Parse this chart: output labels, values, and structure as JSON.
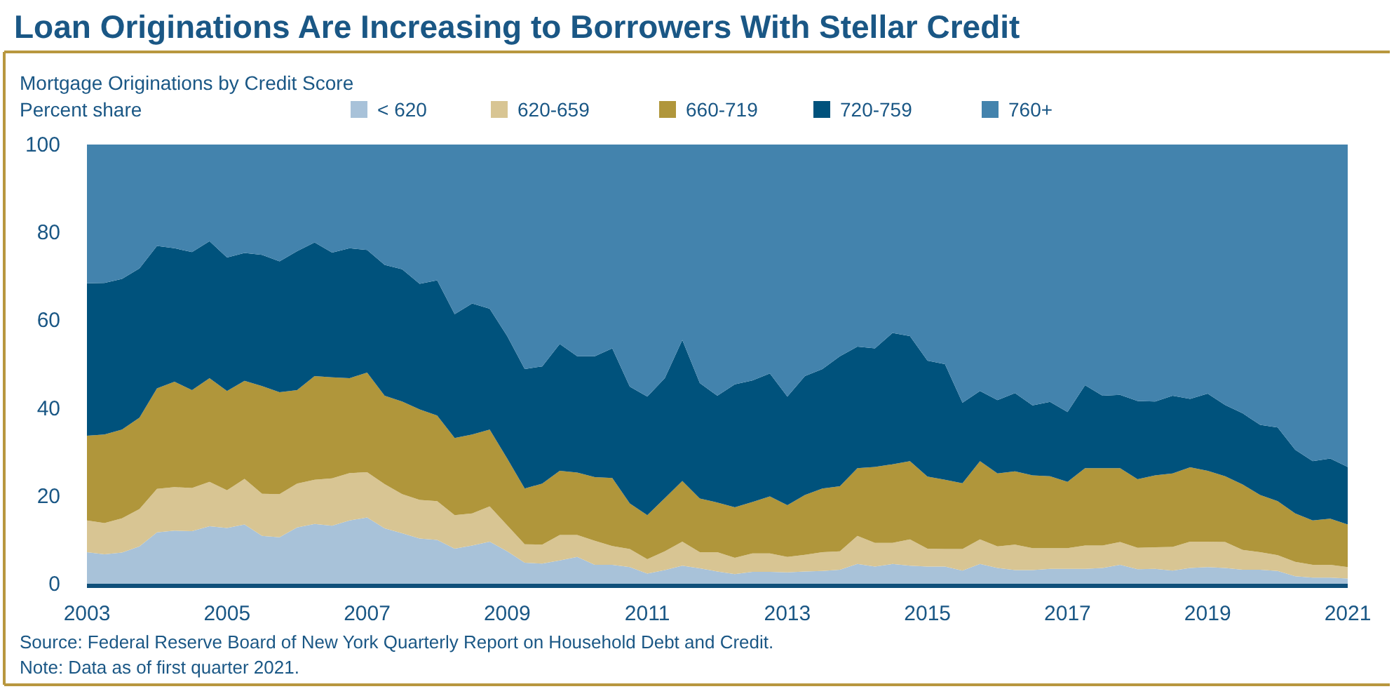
{
  "chart_data": {
    "type": "area",
    "stacked": true,
    "title": "Loan Originations Are Increasing to Borrowers With Stellar Credit",
    "subtitle": "Mortgage Originations by Credit Score",
    "ylabel": "Percent share",
    "legend": "top",
    "grid": false,
    "x": [
      2003,
      2003.25,
      2003.5,
      2003.75,
      2004,
      2004.25,
      2004.5,
      2004.75,
      2005,
      2005.25,
      2005.5,
      2005.75,
      2006,
      2006.25,
      2006.5,
      2006.75,
      2007,
      2007.25,
      2007.5,
      2007.75,
      2008,
      2008.25,
      2008.5,
      2008.75,
      2009,
      2009.25,
      2009.5,
      2009.75,
      2010,
      2010.25,
      2010.5,
      2010.75,
      2011,
      2011.25,
      2011.5,
      2011.75,
      2012,
      2012.25,
      2012.5,
      2012.75,
      2013,
      2013.25,
      2013.5,
      2013.75,
      2014,
      2014.25,
      2014.5,
      2014.75,
      2015,
      2015.25,
      2015.5,
      2015.75,
      2016,
      2016.25,
      2016.5,
      2016.75,
      2017,
      2017.25,
      2017.5,
      2017.75,
      2018,
      2018.25,
      2018.5,
      2018.75,
      2019,
      2019.25,
      2019.5,
      2019.75,
      2020,
      2020.25,
      2020.5,
      2020.75,
      2021
    ],
    "xlim": [
      2003,
      2021
    ],
    "xticks": [
      2003,
      2005,
      2007,
      2009,
      2011,
      2013,
      2015,
      2017,
      2019,
      2021
    ],
    "ylim": [
      0,
      100
    ],
    "yticks": [
      0,
      20,
      40,
      60,
      80,
      100
    ],
    "series": [
      {
        "name": "< 620",
        "color": "#a8c2d9",
        "values": [
          7.2,
          6.7,
          7.1,
          8.5,
          11.7,
          12.1,
          12.0,
          13.1,
          12.7,
          13.5,
          10.9,
          10.6,
          12.8,
          13.6,
          13.2,
          14.4,
          15.1,
          12.6,
          11.5,
          10.3,
          10.0,
          8.0,
          8.7,
          9.6,
          7.4,
          4.8,
          4.6,
          5.3,
          6.1,
          4.3,
          4.3,
          3.8,
          2.3,
          3.1,
          4.1,
          3.5,
          2.8,
          2.2,
          2.7,
          2.7,
          2.6,
          2.8,
          2.9,
          3.2,
          4.5,
          3.9,
          4.5,
          4.1,
          3.9,
          3.9,
          3.0,
          4.5,
          3.6,
          3.1,
          3.1,
          3.4,
          3.4,
          3.4,
          3.6,
          4.3,
          3.3,
          3.4,
          3.0,
          3.6,
          3.8,
          3.6,
          3.2,
          3.2,
          2.9,
          1.7,
          1.4,
          1.4,
          1.2
        ]
      },
      {
        "name": "620-659",
        "color": "#d8c593",
        "values": [
          7.2,
          7.1,
          7.8,
          8.5,
          9.9,
          9.9,
          9.8,
          10.1,
          8.6,
          10.4,
          9.6,
          9.8,
          10.0,
          10.1,
          10.8,
          10.8,
          10.3,
          10.1,
          8.9,
          8.8,
          8.8,
          7.6,
          7.3,
          8.0,
          5.9,
          4.2,
          4.3,
          5.8,
          5.0,
          5.5,
          4.3,
          4.1,
          3.3,
          4.3,
          5.5,
          3.7,
          4.4,
          3.7,
          4.2,
          4.2,
          3.5,
          3.8,
          4.3,
          4.2,
          6.4,
          5.4,
          4.8,
          6.0,
          4.1,
          4.0,
          4.9,
          5.6,
          4.9,
          5.8,
          5.0,
          4.7,
          4.7,
          5.3,
          5.1,
          5.2,
          4.9,
          4.9,
          5.4,
          6.0,
          5.8,
          5.9,
          4.5,
          4.0,
          3.6,
          3.3,
          2.9,
          2.9,
          2.6
        ]
      },
      {
        "name": "660-719",
        "color": "#b0963b",
        "values": [
          19.3,
          20.2,
          20.2,
          20.8,
          22.9,
          24.0,
          22.3,
          23.6,
          22.6,
          22.3,
          24.5,
          23.2,
          21.3,
          23.6,
          23.0,
          21.6,
          22.7,
          20.1,
          21.1,
          20.6,
          19.5,
          17.6,
          18.0,
          17.5,
          15.2,
          12.7,
          13.9,
          14.6,
          14.2,
          14.5,
          15.5,
          10.4,
          10.0,
          12.1,
          13.8,
          12.2,
          11.3,
          11.5,
          11.7,
          13.0,
          11.8,
          13.6,
          14.5,
          14.8,
          15.4,
          17.3,
          17.9,
          17.8,
          16.4,
          15.8,
          15.0,
          17.8,
          16.6,
          16.7,
          16.6,
          16.4,
          15.1,
          17.6,
          17.6,
          16.8,
          15.6,
          16.4,
          16.7,
          16.9,
          16.1,
          15.0,
          14.9,
          13.0,
          12.3,
          11.0,
          10.1,
          10.5,
          9.7
        ]
      },
      {
        "name": "720-759",
        "color": "#00527c",
        "values": [
          34.7,
          34.5,
          34.3,
          34.0,
          32.4,
          30.4,
          31.4,
          31.2,
          30.4,
          29.1,
          29.9,
          29.8,
          31.6,
          30.4,
          28.4,
          29.6,
          27.9,
          29.8,
          30.1,
          28.6,
          30.8,
          28.2,
          29.8,
          27.5,
          27.9,
          27.2,
          26.7,
          28.9,
          26.5,
          27.5,
          29.5,
          26.6,
          27.0,
          27.3,
          32.1,
          26.3,
          24.3,
          28.0,
          27.7,
          28.0,
          24.7,
          27.1,
          27.2,
          29.6,
          27.7,
          27.0,
          29.9,
          28.5,
          26.4,
          26.3,
          18.3,
          16.0,
          16.7,
          17.8,
          15.9,
          16.9,
          15.9,
          18.9,
          16.5,
          16.7,
          17.8,
          16.8,
          17.7,
          15.6,
          17.6,
          16.2,
          16.2,
          16.0,
          16.8,
          14.5,
          13.5,
          13.7,
          13.1
        ]
      },
      {
        "name": "760+",
        "color": "#4383ad",
        "values": [
          31.6,
          31.5,
          30.6,
          28.2,
          23.1,
          23.6,
          24.5,
          22.0,
          25.7,
          24.7,
          25.1,
          26.6,
          24.3,
          22.3,
          24.6,
          23.6,
          24.0,
          27.4,
          28.4,
          31.7,
          30.9,
          38.6,
          36.2,
          37.4,
          43.6,
          51.1,
          50.5,
          45.4,
          48.2,
          48.2,
          46.4,
          55.1,
          57.4,
          53.2,
          44.5,
          54.3,
          57.2,
          54.6,
          53.7,
          52.1,
          57.4,
          52.7,
          51.1,
          48.2,
          46.0,
          46.4,
          42.9,
          43.6,
          49.2,
          50.0,
          58.8,
          56.1,
          58.2,
          56.6,
          59.4,
          58.6,
          60.9,
          54.8,
          57.2,
          57.0,
          58.4,
          58.5,
          57.2,
          57.9,
          56.7,
          59.3,
          61.2,
          63.8,
          64.4,
          69.5,
          72.1,
          71.5,
          73.4
        ]
      }
    ],
    "annotations": [
      "Source: Federal Reserve Board of New York Quarterly Report on Household Debt and Credit.",
      "Note: Data as of first quarter 2021."
    ]
  }
}
